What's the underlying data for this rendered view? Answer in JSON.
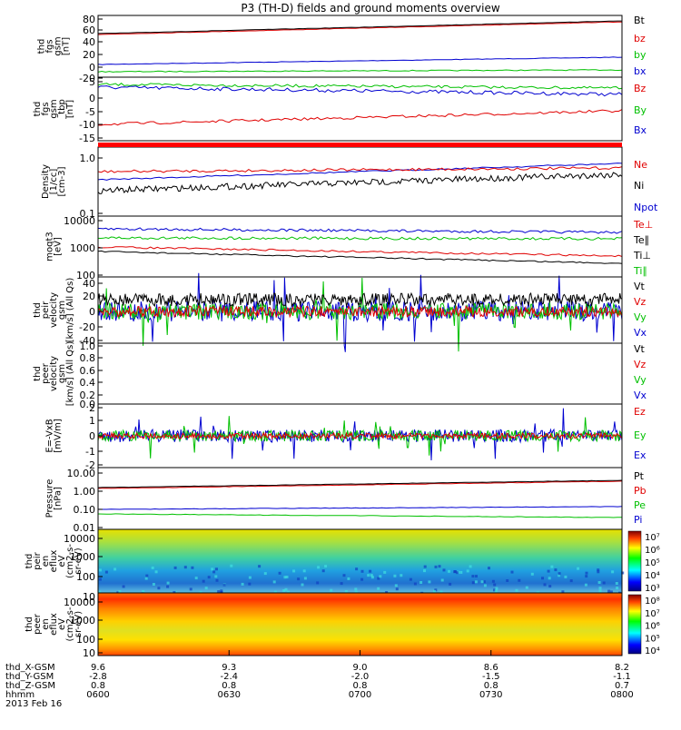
{
  "title": "P3 (TH-D) fields and ground moments overview",
  "panels": [
    {
      "id": "p1",
      "ylabel": [
        "thd",
        "fgs",
        "gsm",
        "[nT]"
      ],
      "ticks": [
        "80",
        "60",
        "40",
        "20",
        "0",
        "-20"
      ],
      "legend": [
        {
          "text": "Bt",
          "color": "#000000"
        },
        {
          "text": "bz",
          "color": "#e00000"
        },
        {
          "text": "by",
          "color": "#00c000"
        },
        {
          "text": "bx",
          "color": "#0000d0"
        }
      ]
    },
    {
      "id": "p2",
      "ylabel": [
        "thd",
        "fgs",
        "gsm",
        "_tbp",
        "[nT]"
      ],
      "ticks": [
        "5",
        "0",
        "-5",
        "-10",
        "-15"
      ],
      "legend": [
        {
          "text": "Bz",
          "color": "#e00000"
        },
        {
          "text": "By",
          "color": "#00c000"
        },
        {
          "text": "Bx",
          "color": "#0000d0"
        }
      ]
    },
    {
      "id": "p3",
      "ylabel": [
        "Density",
        "[1/cc]",
        "[cm-3]"
      ],
      "ticks": [
        "1.0",
        "0.1"
      ],
      "legend": [
        {
          "text": "Ne",
          "color": "#e00000"
        },
        {
          "text": "Ni",
          "color": "#000000"
        },
        {
          "text": "Npot",
          "color": "#0000d0"
        }
      ]
    },
    {
      "id": "p4",
      "ylabel": [
        "moqt3",
        "[eV]"
      ],
      "ticks": [
        "10000",
        "1000",
        "100"
      ],
      "legend": [
        {
          "text": "Te⊥",
          "color": "#e00000"
        },
        {
          "text": "Te∥",
          "color": "#000000"
        },
        {
          "text": "Ti⊥",
          "color": "#000000"
        },
        {
          "text": "Ti∥",
          "color": "#00c000"
        }
      ]
    },
    {
      "id": "p5",
      "ylabel": [
        "thd",
        "peir",
        "velocity",
        "gsm",
        "[km/s] (All Qs)"
      ],
      "ticks": [
        "40",
        "20",
        "0",
        "-20",
        "-40"
      ],
      "legend": [
        {
          "text": "Vt",
          "color": "#000000"
        },
        {
          "text": "Vz",
          "color": "#e00000"
        },
        {
          "text": "Vy",
          "color": "#00c000"
        },
        {
          "text": "Vx",
          "color": "#0000d0"
        }
      ]
    },
    {
      "id": "p6",
      "ylabel": [
        "thd",
        "peer",
        "velocity",
        "gsm",
        "[km/s] (All Qs)"
      ],
      "ticks": [
        "1.0",
        "0.8",
        "0.6",
        "0.4",
        "0.2",
        "0.0"
      ],
      "legend": [
        {
          "text": "Vt",
          "color": "#000000"
        },
        {
          "text": "Vz",
          "color": "#e00000"
        },
        {
          "text": "Vy",
          "color": "#00c000"
        },
        {
          "text": "Vx",
          "color": "#0000d0"
        }
      ]
    },
    {
      "id": "p7",
      "ylabel": [
        "E=-VxB",
        "[mV/m]"
      ],
      "ticks": [
        "2",
        "1",
        "0",
        "-1",
        "-2"
      ],
      "legend": [
        {
          "text": "Ez",
          "color": "#e00000"
        },
        {
          "text": "Ey",
          "color": "#00c000"
        },
        {
          "text": "Ex",
          "color": "#0000d0"
        }
      ]
    },
    {
      "id": "p8",
      "ylabel": [
        "Pressure",
        "[nPa]"
      ],
      "ticks": [
        "10.00",
        "1.00",
        "0.10",
        "0.01"
      ],
      "legend": [
        {
          "text": "Pt",
          "color": "#000000"
        },
        {
          "text": "Pb",
          "color": "#e00000"
        },
        {
          "text": "Pe",
          "color": "#00c000"
        },
        {
          "text": "Pi",
          "color": "#0000d0"
        }
      ]
    },
    {
      "id": "p9",
      "ylabel": [
        "thd",
        "peir",
        "en",
        "eflux",
        "eV",
        "(cm2-s-",
        "sr-eV)"
      ],
      "ticks": [
        "10000",
        "1000",
        "100",
        "10"
      ],
      "cbar": [
        "10⁷",
        "10⁶",
        "10⁵",
        "10⁴",
        "10³"
      ]
    },
    {
      "id": "p10",
      "ylabel": [
        "thd",
        "peer",
        "en",
        "eflux",
        "eV",
        "(cm2-s-",
        "sr-eV)"
      ],
      "ticks": [
        "10000",
        "1000",
        "100",
        "10"
      ],
      "cbar": [
        "10⁸",
        "10⁷",
        "10⁶",
        "10⁵",
        "10⁴"
      ]
    }
  ],
  "xaxis": {
    "rows": [
      {
        "label": "thd_X-GSM",
        "values": [
          "9.6",
          "9.3",
          "9.0",
          "8.6",
          "8.2"
        ]
      },
      {
        "label": "thd_Y-GSM",
        "values": [
          "-2.8",
          "-2.4",
          "-2.0",
          "-1.5",
          "-1.1"
        ]
      },
      {
        "label": "thd_Z-GSM",
        "values": [
          "0.8",
          "0.8",
          "0.8",
          "0.8",
          "0.7"
        ]
      },
      {
        "label": "hhmm",
        "values": [
          "0600",
          "0630",
          "0700",
          "0730",
          "0800"
        ]
      }
    ],
    "date": "2013 Feb 16"
  },
  "chart_data": [
    {
      "type": "line",
      "title": "P3 (TH-D) fields and ground moments overview",
      "ylabel": "thd fgs gsm [nT]",
      "x": [
        "0600",
        "0630",
        "0700",
        "0730",
        "0800"
      ],
      "series": [
        {
          "name": "Bt",
          "values": [
            52,
            56,
            61,
            67,
            76
          ]
        },
        {
          "name": "bz",
          "values": [
            51,
            55,
            60,
            66,
            75
          ]
        },
        {
          "name": "by",
          "values": [
            -6,
            -5,
            -5,
            -4,
            -3
          ]
        },
        {
          "name": "bx",
          "values": [
            9,
            11,
            13,
            16,
            18
          ]
        }
      ],
      "ylim": [
        -20,
        85
      ]
    },
    {
      "type": "line",
      "ylabel": "thd fgs gsm_tbp [nT]",
      "x": [
        "0600",
        "0630",
        "0700",
        "0730",
        "0800"
      ],
      "series": [
        {
          "name": "Bz",
          "values": [
            -10,
            -10,
            -9,
            -8,
            -6
          ]
        },
        {
          "name": "By",
          "values": [
            3,
            4,
            4,
            3,
            2
          ]
        },
        {
          "name": "Bx",
          "values": [
            1,
            1,
            -1,
            -1,
            -1
          ]
        }
      ],
      "ylim": [
        -18,
        6
      ]
    },
    {
      "type": "line",
      "ylabel": "Density [1/cc]",
      "x": [
        "0600",
        "0630",
        "0700",
        "0730",
        "0800"
      ],
      "series": [
        {
          "name": "Ne",
          "values": [
            0.5,
            0.55,
            0.58,
            0.6,
            0.62
          ]
        },
        {
          "name": "Ni",
          "values": [
            0.22,
            0.28,
            0.33,
            0.4,
            0.45
          ]
        },
        {
          "name": "Npot",
          "values": [
            0.4,
            0.42,
            0.48,
            0.6,
            0.8
          ]
        }
      ],
      "yscale": "log",
      "ylim": [
        0.1,
        1.2
      ]
    },
    {
      "type": "line",
      "ylabel": "moqt3 [eV]",
      "x": [
        "0600",
        "0630",
        "0700",
        "0730",
        "0800"
      ],
      "series": [
        {
          "name": "Te⊥",
          "values": [
            1100,
            1000,
            950,
            800,
            600
          ]
        },
        {
          "name": "Te∥",
          "values": [
            850,
            800,
            750,
            600,
            450
          ]
        },
        {
          "name": "Ti⊥",
          "values": [
            4500,
            4300,
            4400,
            4200,
            3800
          ]
        },
        {
          "name": "Ti∥",
          "values": [
            3300,
            3000,
            3200,
            3100,
            2700
          ]
        }
      ],
      "yscale": "log",
      "ylim": [
        100,
        12000
      ]
    },
    {
      "type": "line",
      "ylabel": "thd peir velocity gsm [km/s] (All Qs)",
      "x": [
        "0600",
        "0630",
        "0700",
        "0730",
        "0800"
      ],
      "series": [
        {
          "name": "Vt",
          "values": [
            10,
            10,
            10,
            10,
            10
          ]
        },
        {
          "name": "Vz",
          "values": [
            0,
            0,
            0,
            0,
            0
          ]
        },
        {
          "name": "Vy",
          "values": [
            0,
            0,
            0,
            0,
            0
          ]
        },
        {
          "name": "Vx",
          "values": [
            0,
            0,
            0,
            0,
            0
          ]
        }
      ],
      "ylim": [
        -40,
        40
      ]
    },
    {
      "type": "line",
      "ylabel": "thd peer velocity gsm [km/s] (All Qs)",
      "x": [
        "0600",
        "0630",
        "0700",
        "0730",
        "0800"
      ],
      "series": [],
      "ylim": [
        0,
        1
      ]
    },
    {
      "type": "line",
      "ylabel": "E=-VxB [mV/m]",
      "x": [
        "0600",
        "0630",
        "0700",
        "0730",
        "0800"
      ],
      "series": [
        {
          "name": "Ez",
          "values": [
            0,
            0,
            0,
            0,
            0
          ]
        },
        {
          "name": "Ey",
          "values": [
            0,
            0,
            0,
            0,
            0
          ]
        },
        {
          "name": "Ex",
          "values": [
            0,
            0,
            0,
            0,
            0
          ]
        }
      ],
      "ylim": [
        -2,
        2
      ]
    },
    {
      "type": "line",
      "ylabel": "Pressure [nPa]",
      "x": [
        "0600",
        "0630",
        "0700",
        "0730",
        "0800"
      ],
      "series": [
        {
          "name": "Pt",
          "values": [
            1.1,
            1.3,
            1.6,
            1.9,
            2.4
          ]
        },
        {
          "name": "Pb",
          "values": [
            1.0,
            1.2,
            1.5,
            1.8,
            2.3
          ]
        },
        {
          "name": "Pe",
          "values": [
            0.05,
            0.045,
            0.04,
            0.035,
            0.03
          ]
        },
        {
          "name": "Pi",
          "values": [
            0.13,
            0.12,
            0.12,
            0.11,
            0.1
          ]
        }
      ],
      "yscale": "log",
      "ylim": [
        0.01,
        10
      ]
    },
    {
      "type": "heatmap",
      "ylabel": "thd peir en eflux eV (cm2-s-sr-eV)",
      "yscale": "log",
      "ylim": [
        7,
        20000
      ],
      "colorbar": [
        "10³",
        "10⁴",
        "10⁵",
        "10⁶",
        "10⁷"
      ]
    },
    {
      "type": "heatmap",
      "ylabel": "thd peer en eflux eV (cm2-s-sr-eV)",
      "yscale": "log",
      "ylim": [
        7,
        20000
      ],
      "colorbar": [
        "10⁴",
        "10⁵",
        "10⁶",
        "10⁷",
        "10⁸"
      ]
    }
  ]
}
